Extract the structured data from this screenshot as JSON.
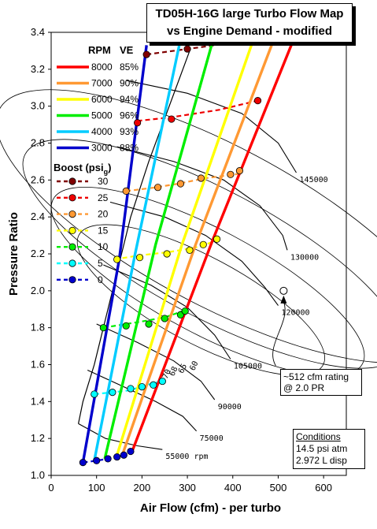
{
  "title": {
    "line1": "TD05H-16G large Turbo Flow Map",
    "line2": "vs Engine Demand - modified"
  },
  "note": {
    "line1": "~512 cfm rating",
    "line2": "@ 2.0 PR"
  },
  "conditions": {
    "heading": "Conditions",
    "line1": "14.5 psi atm",
    "line2": "2.972 L disp"
  },
  "chart_data": {
    "type": "line",
    "xlabel": "Air Flow (cfm) - per turbo",
    "ylabel": "Pressure Ratio",
    "xlim": [
      0,
      650
    ],
    "ylim": [
      1.0,
      3.4
    ],
    "xticks": [
      "0",
      "100",
      "200",
      "300",
      "400",
      "500",
      "600"
    ],
    "yticks": [
      "1.0",
      "1.2",
      "1.4",
      "1.6",
      "1.8",
      "2.0",
      "2.2",
      "2.4",
      "2.6",
      "2.8",
      "3.0",
      "3.2",
      "3.4"
    ],
    "legend_rpm": {
      "heading_rpm": "RPM",
      "heading_ve": "VE",
      "items": [
        {
          "rpm": "8000",
          "ve": "85%",
          "color": "#ff0000"
        },
        {
          "rpm": "7000",
          "ve": "90%",
          "color": "#ff9933"
        },
        {
          "rpm": "6000",
          "ve": "94%",
          "color": "#ffff00"
        },
        {
          "rpm": "5000",
          "ve": "96%",
          "color": "#00ee00"
        },
        {
          "rpm": "4000",
          "ve": "93%",
          "color": "#00ccff"
        },
        {
          "rpm": "3000",
          "ve": "88%",
          "color": "#0000cc"
        }
      ]
    },
    "legend_boost": {
      "heading": "Boost (psi",
      "heading_sub": "g",
      "heading_end": ")",
      "items": [
        {
          "psi": "30",
          "color": "#800000"
        },
        {
          "psi": "25",
          "color": "#ee0000"
        },
        {
          "psi": "20",
          "color": "#ff9933"
        },
        {
          "psi": "15",
          "color": "#ffff00"
        },
        {
          "psi": "10",
          "color": "#00ee00"
        },
        {
          "psi": "5",
          "color": "#00ffff"
        },
        {
          "psi": "0",
          "color": "#0000cc"
        }
      ]
    },
    "rpm_series": [
      {
        "name": "8000",
        "color": "#ff0000",
        "x": [
          180,
          355,
          555
        ],
        "y": [
          1.14,
          2.27,
          3.49
        ]
      },
      {
        "name": "7000",
        "color": "#ff9933",
        "x": [
          158,
          318,
          515
        ],
        "y": [
          1.12,
          2.25,
          3.52
        ]
      },
      {
        "name": "6000",
        "color": "#ffff00",
        "x": [
          145,
          288,
          465
        ],
        "y": [
          1.11,
          2.25,
          3.5
        ]
      },
      {
        "name": "5000",
        "color": "#00ee00",
        "x": [
          118,
          230,
          375
        ],
        "y": [
          1.09,
          2.25,
          3.52
        ]
      },
      {
        "name": "4000",
        "color": "#00ccff",
        "x": [
          95,
          185,
          295
        ],
        "y": [
          1.08,
          2.2,
          3.48
        ]
      },
      {
        "name": "3000",
        "color": "#0000cc",
        "x": [
          70,
          150,
          210
        ],
        "y": [
          1.07,
          2.17,
          3.33
        ]
      }
    ],
    "boost_series": [
      {
        "name": "30",
        "color": "#800000",
        "x": [
          210,
          300,
          390
        ],
        "y": [
          3.28,
          3.31,
          3.34
        ]
      },
      {
        "name": "25",
        "color": "#ee0000",
        "x": [
          190,
          265,
          370,
          455
        ],
        "y": [
          2.92,
          2.94,
          2.98,
          3.03
        ]
      },
      {
        "name": "20",
        "color": "#ff9933",
        "x": [
          165,
          230,
          280,
          340,
          405,
          420
        ],
        "y": [
          2.54,
          2.56,
          2.58,
          2.61,
          2.63,
          2.64
        ]
      },
      {
        "name": "15",
        "color": "#ffff00",
        "x": [
          140,
          190,
          260,
          330,
          370
        ],
        "y": [
          2.17,
          2.19,
          2.21,
          2.24,
          2.28
        ]
      },
      {
        "name": "10",
        "color": "#00ee00",
        "x": [
          115,
          165,
          215,
          255,
          290
        ],
        "y": [
          1.8,
          1.82,
          1.84,
          1.86,
          1.89
        ]
      },
      {
        "name": "5",
        "color": "#00ffff",
        "x": [
          95,
          135,
          170,
          200,
          225,
          245
        ],
        "y": [
          1.44,
          1.45,
          1.46,
          1.48,
          1.5,
          1.51
        ]
      },
      {
        "name": "0",
        "color": "#0000cc",
        "x": [
          70,
          100,
          125,
          145,
          160,
          175
        ],
        "y": [
          1.07,
          1.08,
          1.09,
          1.1,
          1.11,
          1.13
        ]
      }
    ],
    "boost_points": [
      {
        "color": "#800000",
        "x": [
          210,
          300
        ],
        "y": [
          3.28,
          3.31
        ]
      },
      {
        "color": "#ee0000",
        "x": [
          190,
          265,
          455
        ],
        "y": [
          2.91,
          2.93,
          3.03
        ]
      },
      {
        "color": "#ff9933",
        "x": [
          165,
          235,
          285,
          330,
          395,
          415
        ],
        "y": [
          2.54,
          2.56,
          2.58,
          2.61,
          2.63,
          2.65
        ]
      },
      {
        "color": "#ffff00",
        "x": [
          145,
          195,
          255,
          305,
          335,
          365
        ],
        "y": [
          2.17,
          2.18,
          2.2,
          2.22,
          2.25,
          2.28
        ]
      },
      {
        "color": "#00ee00",
        "x": [
          115,
          165,
          215,
          250,
          285,
          295
        ],
        "y": [
          1.8,
          1.81,
          1.82,
          1.85,
          1.87,
          1.89
        ]
      },
      {
        "color": "#00ffff",
        "x": [
          95,
          135,
          175,
          200,
          225,
          245
        ],
        "y": [
          1.44,
          1.45,
          1.47,
          1.48,
          1.49,
          1.51
        ]
      },
      {
        "color": "#0000cc",
        "x": [
          70,
          100,
          125,
          145,
          160,
          175
        ],
        "y": [
          1.07,
          1.08,
          1.09,
          1.1,
          1.11,
          1.13
        ]
      }
    ],
    "rating_point": {
      "x": 512,
      "y": 2.0
    },
    "speed_lines": [
      {
        "label": "55000",
        "unit": "rpm",
        "x": [
          60,
          120,
          190,
          245
        ],
        "y": [
          1.28,
          1.2,
          1.16,
          1.14
        ]
      },
      {
        "label": "75000",
        "x": [
          80,
          160,
          230,
          290,
          320
        ],
        "y": [
          1.57,
          1.48,
          1.4,
          1.32,
          1.24
        ]
      },
      {
        "label": "90000",
        "x": [
          100,
          190,
          270,
          330,
          360
        ],
        "y": [
          1.82,
          1.72,
          1.62,
          1.51,
          1.41
        ]
      },
      {
        "label": "105000",
        "x": [
          115,
          220,
          300,
          360,
          395
        ],
        "y": [
          2.14,
          2.03,
          1.91,
          1.76,
          1.63
        ]
      },
      {
        "label": "120000",
        "x": [
          130,
          250,
          340,
          420,
          470,
          500
        ],
        "y": [
          2.48,
          2.4,
          2.3,
          2.16,
          2.02,
          1.92
        ]
      },
      {
        "label": "130000",
        "x": [
          145,
          270,
          380,
          460,
          510,
          520
        ],
        "y": [
          2.78,
          2.7,
          2.6,
          2.46,
          2.3,
          2.22
        ]
      },
      {
        "label": "145000",
        "x": [
          165,
          300,
          420,
          500,
          540
        ],
        "y": [
          3.14,
          3.07,
          2.96,
          2.8,
          2.64
        ]
      }
    ],
    "efficiency_labels": [
      "70",
      "68",
      "65",
      "60"
    ],
    "surge_line": {
      "x": [
        60,
        70,
        95,
        120,
        145,
        175,
        215,
        260,
        305
      ],
      "y": [
        1.28,
        1.4,
        1.6,
        1.85,
        2.1,
        2.4,
        2.7,
        3.0,
        3.3
      ]
    }
  }
}
